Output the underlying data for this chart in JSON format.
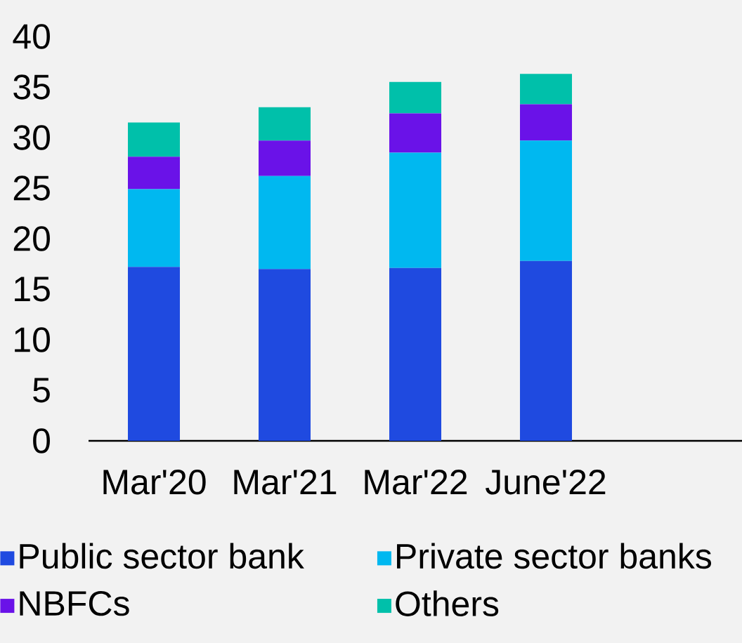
{
  "chart_data": {
    "type": "bar",
    "stacked": true,
    "categories": [
      "Mar'20",
      "Mar'21",
      "Mar'22",
      "June'22"
    ],
    "series": [
      {
        "name": "Public sector bank",
        "color": "#1f4ae0",
        "values": [
          17.2,
          17.0,
          17.1,
          17.8
        ]
      },
      {
        "name": "Private sector banks",
        "color": "#00b8f0",
        "values": [
          7.7,
          9.2,
          11.4,
          11.9
        ]
      },
      {
        "name": "NBFCs",
        "color": "#6a12e8",
        "values": [
          3.2,
          3.5,
          3.9,
          3.6
        ]
      },
      {
        "name": "Others",
        "color": "#00c0aa",
        "values": [
          3.4,
          3.3,
          3.1,
          3.0
        ]
      }
    ],
    "ylim": [
      0,
      40
    ],
    "yticks": [
      0,
      5,
      10,
      15,
      20,
      25,
      30,
      35,
      40
    ],
    "grid": false,
    "legend": "bottom"
  }
}
